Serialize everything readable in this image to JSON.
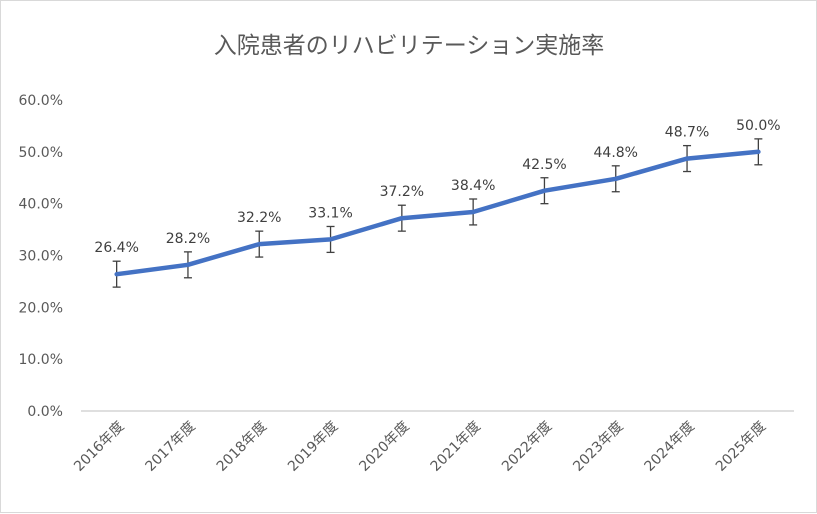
{
  "chart_data": {
    "type": "line",
    "title": "入院患者のリハビリテーション実施率",
    "categories": [
      "2016年度",
      "2017年度",
      "2018年度",
      "2019年度",
      "2020年度",
      "2021年度",
      "2022年度",
      "2023年度",
      "2024年度",
      "2025年度"
    ],
    "values": [
      26.4,
      28.2,
      32.2,
      33.1,
      37.2,
      38.4,
      42.5,
      44.8,
      48.7,
      50.0
    ],
    "data_labels": [
      "26.4%",
      "28.2%",
      "32.2%",
      "33.1%",
      "37.2%",
      "38.4%",
      "42.5%",
      "44.8%",
      "48.7%",
      "50.0%"
    ],
    "error_bar": 2.5,
    "ylim": [
      0,
      60
    ],
    "yticks": [
      0,
      10,
      20,
      30,
      40,
      50,
      60
    ],
    "ytick_labels": [
      "0.0%",
      "10.0%",
      "20.0%",
      "30.0%",
      "40.0%",
      "50.0%",
      "60.0%"
    ],
    "grid": false,
    "legend": "none",
    "xlabel": "",
    "ylabel": "",
    "colors": {
      "line": "#4472C4",
      "error_bar": "#404040",
      "axis": "#bfbfbf",
      "text": "#595959"
    }
  }
}
